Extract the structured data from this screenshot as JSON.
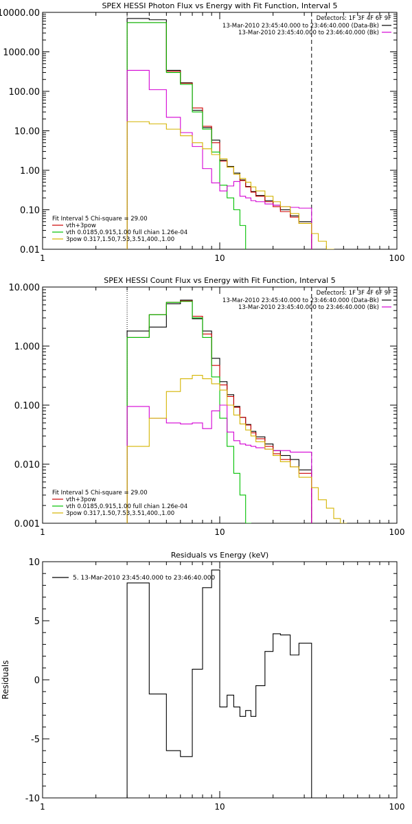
{
  "chart_data": [
    {
      "type": "line",
      "title": "SPEX HESSI Photon Flux vs Energy with Fit Function, Interval 5",
      "xscale": "log",
      "yscale": "log",
      "xlim": [
        1,
        100
      ],
      "ylim": [
        0.01,
        10000
      ],
      "x_ticks": [
        "1",
        "10",
        "100"
      ],
      "y_ticks": [
        "0.01",
        "0.10",
        "1.00",
        "10.00",
        "100.00",
        "1000.00",
        "10000.00"
      ],
      "detectors": "Detectors: 1F 3F 4F 6F 9F",
      "legend": [
        {
          "text": "13-Mar-2010 23:45:40.000 to 23:46:40.000 (Data-Bk)",
          "color": "#000000"
        },
        {
          "text": "13-Mar-2010 23:45:40.000 to 23:46:40.000 (Bk)",
          "color": "#d400d4"
        }
      ],
      "fit_info": "Fit Interval 5   Chi-square = 29.00",
      "fit_legend": [
        {
          "text": "vth+3pow",
          "color": "#cc0000"
        },
        {
          "text": "vth 0.0185,0.915,1.00  full chian 1.26e-04",
          "color": "#00c000"
        },
        {
          "text": "3pow 0.317,1.50,7.53,3.51,400.,1.00",
          "color": "#d4b400"
        }
      ],
      "vlines": [
        {
          "x": 3,
          "style": "dotted",
          "color": "#000000"
        },
        {
          "x": 33,
          "style": "dashed",
          "color": "#000000"
        }
      ],
      "series": [
        {
          "color": "#000000",
          "edges": [
            3,
            4,
            5,
            6,
            7,
            8,
            9,
            10,
            11,
            12,
            13,
            14,
            15,
            16,
            18,
            20,
            22,
            25,
            28,
            33
          ],
          "values": [
            7000,
            6500,
            340,
            165,
            33,
            12,
            5.8,
            1.8,
            1.25,
            0.85,
            0.57,
            0.39,
            0.29,
            0.23,
            0.17,
            0.13,
            0.1,
            0.07,
            0.05
          ]
        },
        {
          "color": "#cc0000",
          "edges": [
            3,
            4,
            5,
            6,
            7,
            8,
            9,
            10,
            11,
            12,
            13,
            14,
            15,
            16,
            18,
            20,
            22,
            25,
            28,
            33
          ],
          "values": [
            5500,
            5500,
            320,
            160,
            38,
            13,
            5.0,
            1.7,
            1.2,
            0.8,
            0.55,
            0.38,
            0.28,
            0.22,
            0.16,
            0.12,
            0.09,
            0.065,
            0.045
          ]
        },
        {
          "color": "#00c000",
          "edges": [
            3,
            4,
            5,
            6,
            7,
            8,
            9,
            10,
            11,
            12,
            13,
            14
          ],
          "values": [
            5500,
            5500,
            300,
            150,
            30,
            11,
            2.9,
            0.42,
            0.2,
            0.1,
            0.04
          ]
        },
        {
          "color": "#d400d4",
          "edges": [
            3,
            4,
            5,
            6,
            7,
            8,
            9,
            10,
            11,
            12,
            13,
            14,
            15,
            16,
            18,
            20,
            22,
            25,
            28,
            33
          ],
          "values": [
            340,
            110,
            22,
            9,
            4,
            1.1,
            0.48,
            0.3,
            0.4,
            0.52,
            0.22,
            0.2,
            0.17,
            0.16,
            0.14,
            0.13,
            0.12,
            0.115,
            0.11
          ]
        },
        {
          "color": "#d4b400",
          "edges": [
            3,
            4,
            5,
            6,
            7,
            8,
            9,
            10,
            11,
            12,
            13,
            14,
            15,
            16,
            18,
            20,
            22,
            25,
            28,
            33,
            36,
            40,
            44
          ],
          "values": [
            17,
            15,
            11,
            7.5,
            5.0,
            3.5,
            2.5,
            1.95,
            1.2,
            0.8,
            0.62,
            0.5,
            0.38,
            0.3,
            0.22,
            0.16,
            0.12,
            0.08,
            0.045,
            0.025,
            0.016,
            0.01
          ]
        }
      ]
    },
    {
      "type": "line",
      "title": "SPEX HESSI Count Flux vs Energy with Fit Function, Interval 5",
      "xscale": "log",
      "yscale": "log",
      "xlim": [
        1,
        100
      ],
      "ylim": [
        0.001,
        10
      ],
      "x_ticks": [
        "1",
        "10",
        "100"
      ],
      "y_ticks": [
        "0.001",
        "0.010",
        "0.100",
        "1.000",
        "10.000"
      ],
      "detectors": "Detectors: 1F 3F 4F 6F 9F",
      "legend": [
        {
          "text": "13-Mar-2010 23:45:40.000 to 23:46:40.000 (Data-Bk)",
          "color": "#000000"
        },
        {
          "text": "13-Mar-2010 23:45:40.000 to 23:46:40.000 (Bk)",
          "color": "#d400d4"
        }
      ],
      "fit_info": "Fit Interval 5   Chi-square = 29.00",
      "fit_legend": [
        {
          "text": "vth+3pow",
          "color": "#cc0000"
        },
        {
          "text": "vth 0.0185,0.915,1.00  full chian 1.26e-04",
          "color": "#00c000"
        },
        {
          "text": "3pow 0.317,1.50,7.53,3.51,400.,1.00",
          "color": "#d4b400"
        }
      ],
      "vlines": [
        {
          "x": 3,
          "style": "dotted",
          "color": "#000000"
        },
        {
          "x": 33,
          "style": "dashed",
          "color": "#000000"
        }
      ],
      "series": [
        {
          "color": "#000000",
          "edges": [
            3,
            4,
            5,
            6,
            7,
            8,
            9,
            10,
            11,
            12,
            13,
            14,
            15,
            16,
            18,
            20,
            22,
            25,
            28,
            33
          ],
          "values": [
            1.8,
            2.1,
            5.2,
            6.0,
            2.9,
            1.8,
            0.62,
            0.25,
            0.15,
            0.095,
            0.062,
            0.047,
            0.036,
            0.029,
            0.022,
            0.017,
            0.014,
            0.012,
            0.008
          ]
        },
        {
          "color": "#cc0000",
          "edges": [
            3,
            4,
            5,
            6,
            7,
            8,
            9,
            10,
            11,
            12,
            13,
            14,
            15,
            16,
            18,
            20,
            22,
            25,
            28,
            33
          ],
          "values": [
            1.4,
            3.4,
            5.5,
            5.8,
            3.2,
            1.6,
            0.47,
            0.22,
            0.14,
            0.092,
            0.062,
            0.046,
            0.034,
            0.027,
            0.02,
            0.015,
            0.012,
            0.009,
            0.007
          ]
        },
        {
          "color": "#00c000",
          "edges": [
            3,
            4,
            5,
            6,
            7,
            8,
            9,
            10,
            11,
            12,
            13,
            14,
            15
          ],
          "values": [
            1.4,
            3.4,
            5.5,
            5.7,
            3.0,
            1.4,
            0.3,
            0.06,
            0.02,
            0.007,
            0.003,
            0.001
          ]
        },
        {
          "color": "#d400d4",
          "edges": [
            3,
            4,
            5,
            6,
            7,
            8,
            9,
            10,
            11,
            12,
            13,
            14,
            15,
            16,
            18,
            20,
            22,
            25,
            28,
            33
          ],
          "values": [
            0.095,
            0.06,
            0.05,
            0.048,
            0.05,
            0.04,
            0.08,
            0.1,
            0.035,
            0.025,
            0.022,
            0.021,
            0.02,
            0.019,
            0.018,
            0.017,
            0.017,
            0.016,
            0.016
          ]
        },
        {
          "color": "#d4b400",
          "edges": [
            3,
            4,
            5,
            6,
            7,
            8,
            9,
            10,
            11,
            12,
            13,
            14,
            15,
            16,
            18,
            20,
            22,
            25,
            28,
            33,
            36,
            40,
            44,
            48,
            52
          ],
          "values": [
            0.02,
            0.06,
            0.17,
            0.28,
            0.32,
            0.28,
            0.23,
            0.18,
            0.1,
            0.068,
            0.048,
            0.038,
            0.03,
            0.024,
            0.018,
            0.014,
            0.011,
            0.009,
            0.006,
            0.004,
            0.0025,
            0.0018,
            0.0012,
            0.001
          ]
        }
      ]
    },
    {
      "type": "line",
      "title": "Residuals vs Energy (keV)",
      "xscale": "log",
      "yscale": "linear",
      "xlim": [
        1,
        100
      ],
      "ylim": [
        -10,
        10
      ],
      "x_ticks": [
        "1",
        "10",
        "100"
      ],
      "y_ticks": [
        "-10",
        "-5",
        "0",
        "5",
        "10"
      ],
      "ylabel": "Residuals",
      "legend": [
        {
          "text": "5. 13-Mar-2010 23:45:40.000 to 23:46:40.000",
          "color": "#000000"
        }
      ],
      "series": [
        {
          "color": "#000000",
          "edges": [
            3,
            4,
            5,
            6,
            7,
            8,
            9,
            10,
            11,
            12,
            13,
            14,
            15,
            16,
            18,
            20,
            22,
            25,
            28,
            33
          ],
          "values": [
            8.2,
            -1.2,
            -6.0,
            -6.5,
            0.9,
            7.8,
            9.3,
            -2.3,
            -1.3,
            -2.3,
            -3.1,
            -2.6,
            -3.1,
            -0.5,
            2.4,
            3.9,
            3.8,
            2.1,
            3.1
          ]
        }
      ]
    }
  ]
}
